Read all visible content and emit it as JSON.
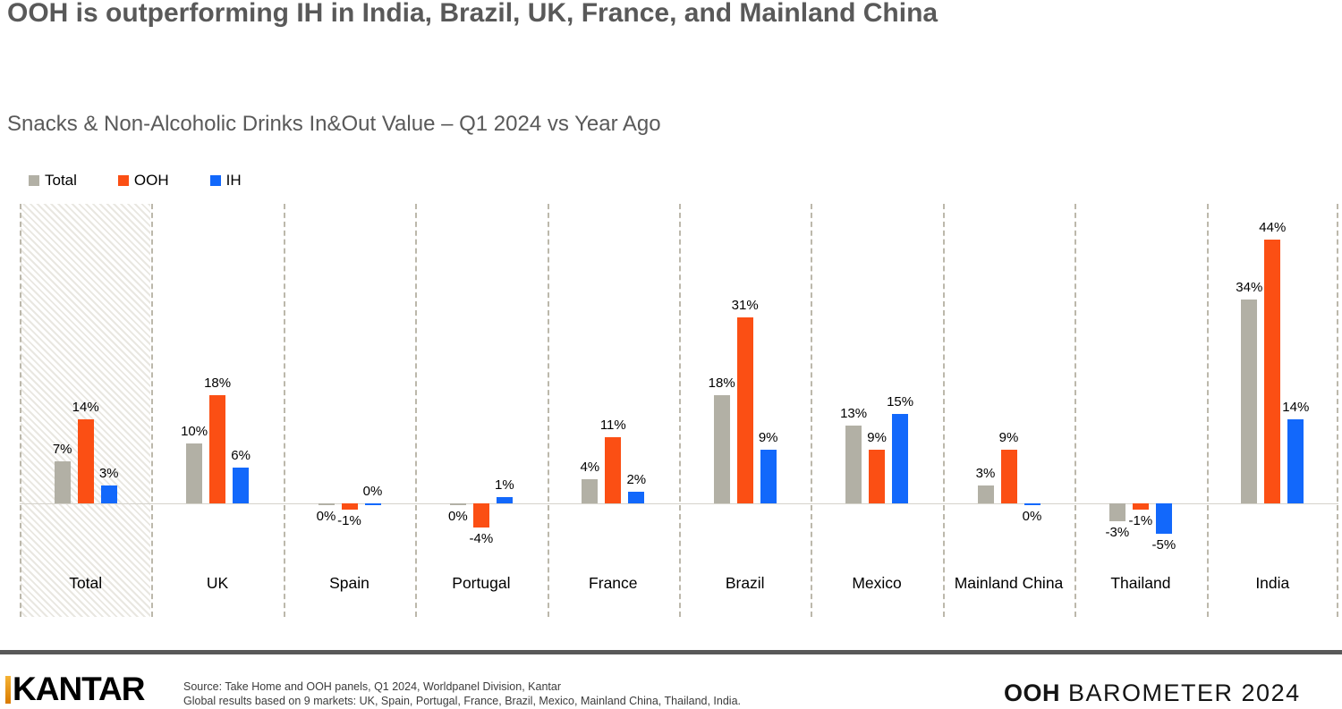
{
  "title": "OOH is outperforming IH in India, Brazil, UK, France, and Mainland China",
  "subtitle": "Snacks & Non-Alcoholic Drinks In&Out Value – Q1 2024 vs Year Ago",
  "legend": [
    {
      "label": "Total",
      "color": "#b2b0a5"
    },
    {
      "label": "OOH",
      "color": "#fb4f14"
    },
    {
      "label": "IH",
      "color": "#1268fb"
    }
  ],
  "chart_data": {
    "type": "bar",
    "title": "Snacks & Non-Alcoholic Drinks In&Out Value – Q1 2024 vs Year Ago",
    "categories": [
      "Total",
      "UK",
      "Spain",
      "Portugal",
      "France",
      "Brazil",
      "Mexico",
      "Mainland China",
      "Thailand",
      "India"
    ],
    "series": [
      {
        "name": "Total",
        "color": "#b2b0a5",
        "values": [
          7,
          10,
          0,
          0,
          4,
          18,
          13,
          3,
          -3,
          34
        ]
      },
      {
        "name": "OOH",
        "color": "#fb4f14",
        "values": [
          14,
          18,
          -1,
          -4,
          11,
          31,
          9,
          9,
          -1,
          44
        ]
      },
      {
        "name": "IH",
        "color": "#1268fb",
        "values": [
          3,
          6,
          0,
          1,
          2,
          9,
          15,
          0,
          -5,
          14
        ]
      }
    ],
    "value_label_format": "{v}%",
    "highlighted_category": "Total",
    "zero_labels_below": [
      [
        "Total",
        "Spain"
      ],
      [
        "Total",
        "Portugal"
      ],
      [
        "IH",
        "Mainland China"
      ]
    ],
    "ylim": [
      -8,
      47
    ],
    "grid": "dashed-vertical-separators",
    "axis_labels_hidden": true,
    "legend_position": "top-left"
  },
  "footer": {
    "kantar_logo_text": "KANTAR",
    "source_line1": "Source: Take Home and OOH panels, Q1 2024, Worldpanel Division, Kantar",
    "source_line2": "Global results based on 9 markets: UK, Spain, Portugal, France, Brazil, Mexico, Mainland China, Thailand, India.",
    "barometer_bold": "OOH",
    "barometer_rest": " BAROMETER 2024"
  },
  "colors": {
    "title_text": "#595959",
    "divider": "#595959",
    "dashed_separator": "#bcb8ab",
    "baseline": "#d5d3cc"
  }
}
